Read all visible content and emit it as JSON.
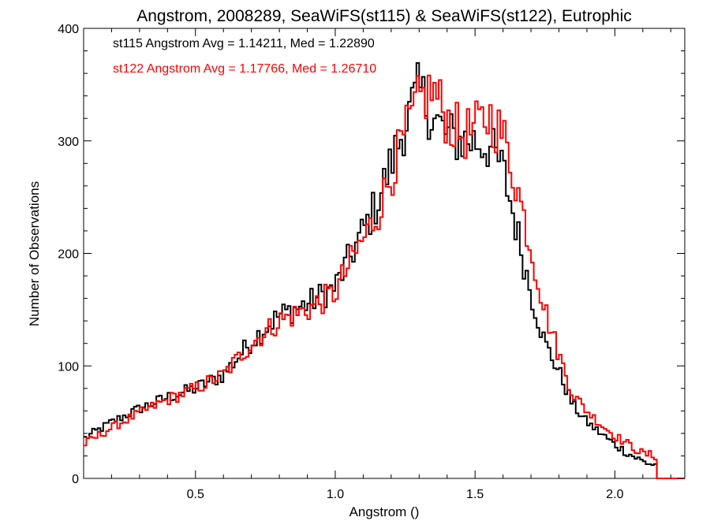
{
  "chart_data": {
    "type": "histogram",
    "title": "Angstrom, 2008289, SeaWiFS(st115) & SeaWiFS(st122), Eutrophic",
    "xlabel": "Angstrom ()",
    "ylabel": "Number of Observations",
    "xlim": [
      0.1,
      2.25
    ],
    "ylim": [
      0,
      400
    ],
    "x_ticks": [
      0.5,
      1.0,
      1.5,
      2.0
    ],
    "x_tick_labels": [
      "0.5",
      "1.0",
      "1.5",
      "2.0"
    ],
    "y_ticks": [
      0,
      100,
      200,
      300,
      400
    ],
    "y_tick_labels": [
      "0",
      "100",
      "200",
      "300",
      "400"
    ],
    "bin_width": 0.01,
    "x_start": 0.1,
    "grid": false,
    "legend_position": "top-left",
    "annotations": [
      "st115 Angstrom Avg = 1.14211, Med = 1.22890",
      "st122 Angstrom Avg = 1.17766, Med = 1.26710"
    ],
    "series": [
      {
        "name": "st115",
        "color": "#000000",
        "anchors": [
          [
            0.1,
            35
          ],
          [
            0.2,
            50
          ],
          [
            0.3,
            62
          ],
          [
            0.4,
            72
          ],
          [
            0.5,
            80
          ],
          [
            0.6,
            92
          ],
          [
            0.7,
            122
          ],
          [
            0.8,
            145
          ],
          [
            0.9,
            155
          ],
          [
            1.0,
            170
          ],
          [
            1.05,
            195
          ],
          [
            1.1,
            220
          ],
          [
            1.15,
            245
          ],
          [
            1.2,
            280
          ],
          [
            1.25,
            315
          ],
          [
            1.3,
            345
          ],
          [
            1.35,
            320
          ],
          [
            1.4,
            305
          ],
          [
            1.45,
            300
          ],
          [
            1.5,
            300
          ],
          [
            1.55,
            295
          ],
          [
            1.6,
            275
          ],
          [
            1.65,
            220
          ],
          [
            1.7,
            165
          ],
          [
            1.75,
            120
          ],
          [
            1.8,
            95
          ],
          [
            1.85,
            65
          ],
          [
            1.9,
            50
          ],
          [
            1.95,
            40
          ],
          [
            2.0,
            30
          ],
          [
            2.05,
            22
          ],
          [
            2.1,
            15
          ],
          [
            2.14,
            12
          ]
        ]
      },
      {
        "name": "st122",
        "color": "#ff0000",
        "anchors": [
          [
            0.1,
            30
          ],
          [
            0.2,
            45
          ],
          [
            0.3,
            58
          ],
          [
            0.4,
            70
          ],
          [
            0.5,
            80
          ],
          [
            0.6,
            92
          ],
          [
            0.7,
            120
          ],
          [
            0.8,
            140
          ],
          [
            0.9,
            150
          ],
          [
            1.0,
            165
          ],
          [
            1.05,
            190
          ],
          [
            1.1,
            212
          ],
          [
            1.15,
            235
          ],
          [
            1.2,
            270
          ],
          [
            1.25,
            305
          ],
          [
            1.3,
            335
          ],
          [
            1.35,
            345
          ],
          [
            1.4,
            320
          ],
          [
            1.45,
            305
          ],
          [
            1.5,
            310
          ],
          [
            1.55,
            322
          ],
          [
            1.6,
            305
          ],
          [
            1.65,
            260
          ],
          [
            1.7,
            205
          ],
          [
            1.75,
            150
          ],
          [
            1.8,
            110
          ],
          [
            1.85,
            75
          ],
          [
            1.9,
            60
          ],
          [
            1.95,
            48
          ],
          [
            2.0,
            38
          ],
          [
            2.05,
            30
          ],
          [
            2.1,
            22
          ],
          [
            2.14,
            20
          ]
        ]
      }
    ]
  }
}
